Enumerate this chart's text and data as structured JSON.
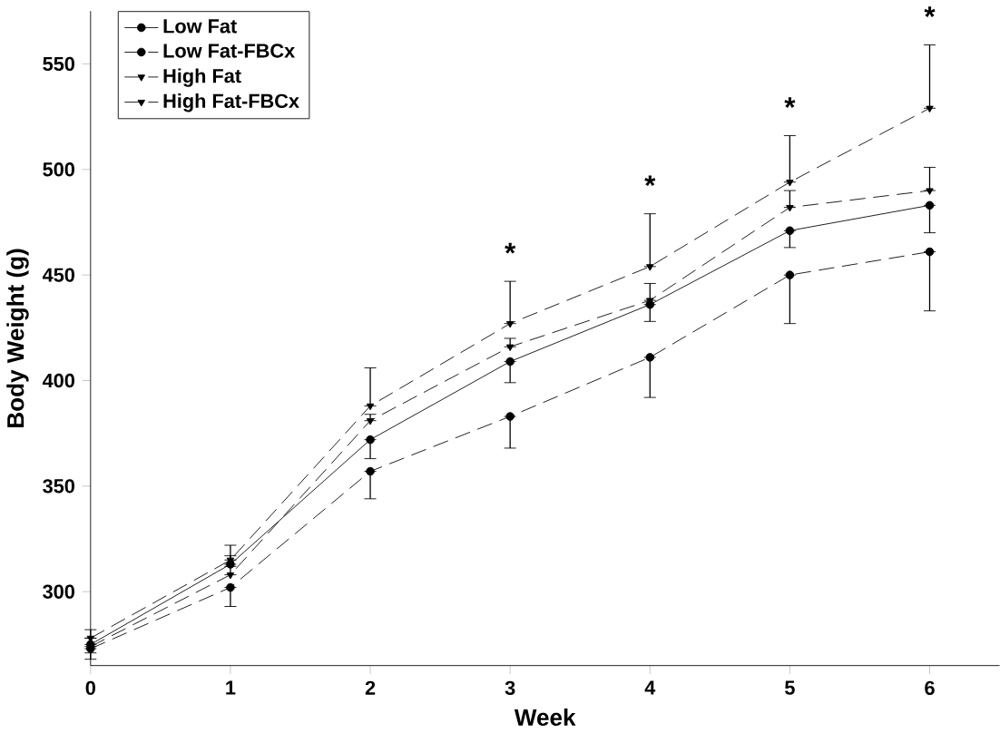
{
  "chart_data": {
    "type": "line",
    "xlabel": "Week",
    "ylabel": "Body Weight (g)",
    "x": [
      0,
      1,
      2,
      3,
      4,
      5,
      6
    ],
    "xlim": [
      0,
      6.5
    ],
    "xticks": [
      0,
      1,
      2,
      3,
      4,
      5,
      6
    ],
    "ylim": [
      265,
      575
    ],
    "yticks": [
      300,
      350,
      400,
      450,
      500,
      550
    ],
    "legend": "top left",
    "grid": false,
    "series": [
      {
        "name": "Low Fat",
        "color": "#000000",
        "marker": "circle",
        "line_style": "solid",
        "values": [
          275,
          313,
          372,
          409,
          436,
          471,
          483
        ],
        "errors": [
          [
            271,
            275
          ],
          [
            313,
            317
          ],
          [
            363,
            372
          ],
          [
            399,
            409
          ],
          [
            428,
            436
          ],
          [
            463,
            471
          ],
          [
            470,
            483
          ]
        ]
      },
      {
        "name": "Low Fat-FBCx",
        "color": "#000000",
        "marker": "circle",
        "line_style": "dashed",
        "values": [
          273,
          302,
          357,
          383,
          411,
          450,
          461
        ],
        "errors": [
          [
            268,
            273
          ],
          [
            293,
            302
          ],
          [
            344,
            357
          ],
          [
            368,
            383
          ],
          [
            392,
            411
          ],
          [
            427,
            450
          ],
          [
            433,
            461
          ]
        ]
      },
      {
        "name": "High Fat",
        "color": "#000000",
        "marker": "triangle",
        "line_style": "dashed",
        "values": [
          278,
          315,
          388,
          427,
          454,
          494,
          529
        ],
        "errors": [
          [
            278,
            282
          ],
          [
            315,
            322
          ],
          [
            388,
            406
          ],
          [
            427,
            447
          ],
          [
            454,
            479
          ],
          [
            494,
            516
          ],
          [
            529,
            559
          ]
        ]
      },
      {
        "name": "High Fat-FBCx",
        "color": "#000000",
        "marker": "triangle",
        "line_style": "dashed",
        "values": [
          274,
          308,
          381,
          416,
          438,
          482,
          490
        ],
        "errors": [
          [
            274,
            278
          ],
          [
            308,
            312
          ],
          [
            381,
            384
          ],
          [
            416,
            420
          ],
          [
            438,
            446
          ],
          [
            482,
            490
          ],
          [
            490,
            501
          ]
        ]
      }
    ],
    "annotations": [
      {
        "text": "*",
        "x": 3,
        "y": 447
      },
      {
        "text": "*",
        "x": 4,
        "y": 479
      },
      {
        "text": "*",
        "x": 5,
        "y": 516
      },
      {
        "text": "*",
        "x": 6,
        "y": 559
      }
    ]
  }
}
